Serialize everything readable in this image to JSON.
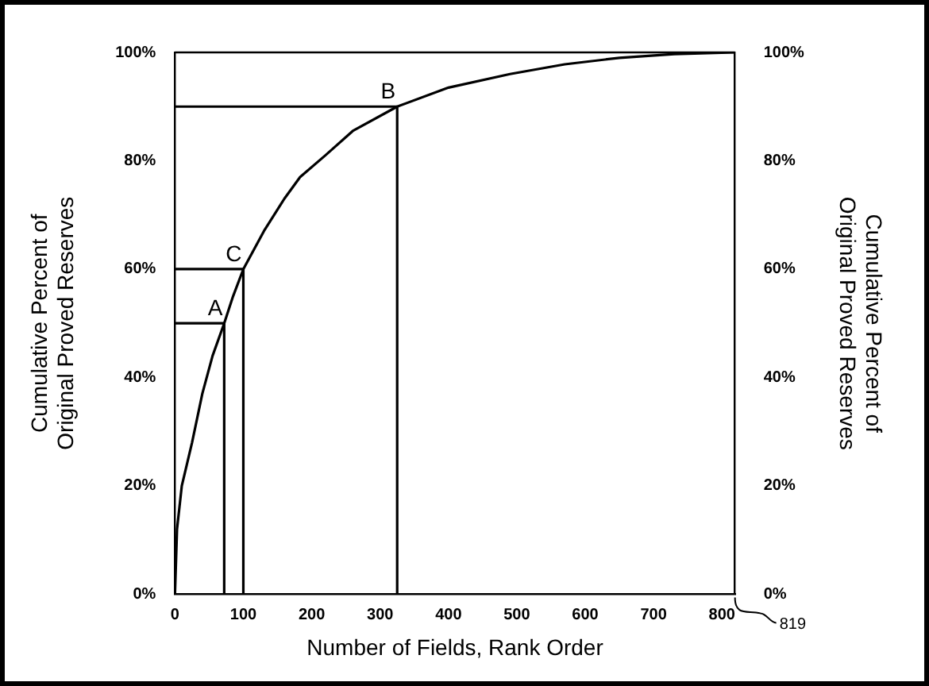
{
  "chart_data": {
    "type": "line",
    "xlabel": "Number of Fields, Rank Order",
    "ylabel": "Cumulative Percent of\nOriginal Proved Reserves",
    "y2label": "Cumulative Percent of\nOriginal Proved Reserves",
    "series": [
      {
        "color": "#000000",
        "x": [
          0,
          3,
          10,
          25,
          40,
          55,
          72,
          85,
          100,
          130,
          160,
          183,
          220,
          260,
          325,
          400,
          490,
          570,
          650,
          730,
          819
        ],
        "values": [
          0,
          12,
          20,
          28,
          37,
          44,
          50,
          55,
          60,
          67,
          73,
          77,
          81,
          85.5,
          90,
          93.5,
          96,
          97.8,
          99,
          99.7,
          100
        ]
      },
      {
        "color": "#000000",
        "x": [
          0,
          72,
          72
        ],
        "values": [
          50,
          50,
          0
        ]
      },
      {
        "color": "#000000",
        "x": [
          0,
          100,
          100
        ],
        "values": [
          60,
          60,
          0
        ]
      },
      {
        "color": "#000000",
        "x": [
          0,
          325,
          325
        ],
        "values": [
          90,
          90,
          0
        ]
      }
    ],
    "annotations": [
      {
        "text": "A",
        "x": 72,
        "y": 50
      },
      {
        "text": "C",
        "x": 100,
        "y": 60
      },
      {
        "text": "B",
        "x": 325,
        "y": 90
      },
      "819"
    ],
    "xlim": [
      0,
      819
    ],
    "xticks": [
      0,
      100,
      200,
      300,
      400,
      500,
      600,
      700,
      800
    ],
    "ylim": [
      0,
      100
    ],
    "yticks": [
      {
        "value": 0,
        "label": "0%"
      },
      {
        "value": 20,
        "label": "20%"
      },
      {
        "value": 40,
        "label": "40%"
      },
      {
        "value": 60,
        "label": "60%"
      },
      {
        "value": 80,
        "label": "80%"
      },
      {
        "value": 100,
        "label": "100%"
      }
    ],
    "y2lim": [
      0,
      100
    ],
    "y2ticks": [
      {
        "value": 0,
        "label": "0%"
      },
      {
        "value": 20,
        "label": "20%"
      },
      {
        "value": 40,
        "label": "40%"
      },
      {
        "value": 60,
        "label": "60%"
      },
      {
        "value": 80,
        "label": "80%"
      },
      {
        "value": 100,
        "label": "100%"
      }
    ],
    "grid": false,
    "legend": false,
    "marker": "none",
    "line_style": "solid"
  }
}
